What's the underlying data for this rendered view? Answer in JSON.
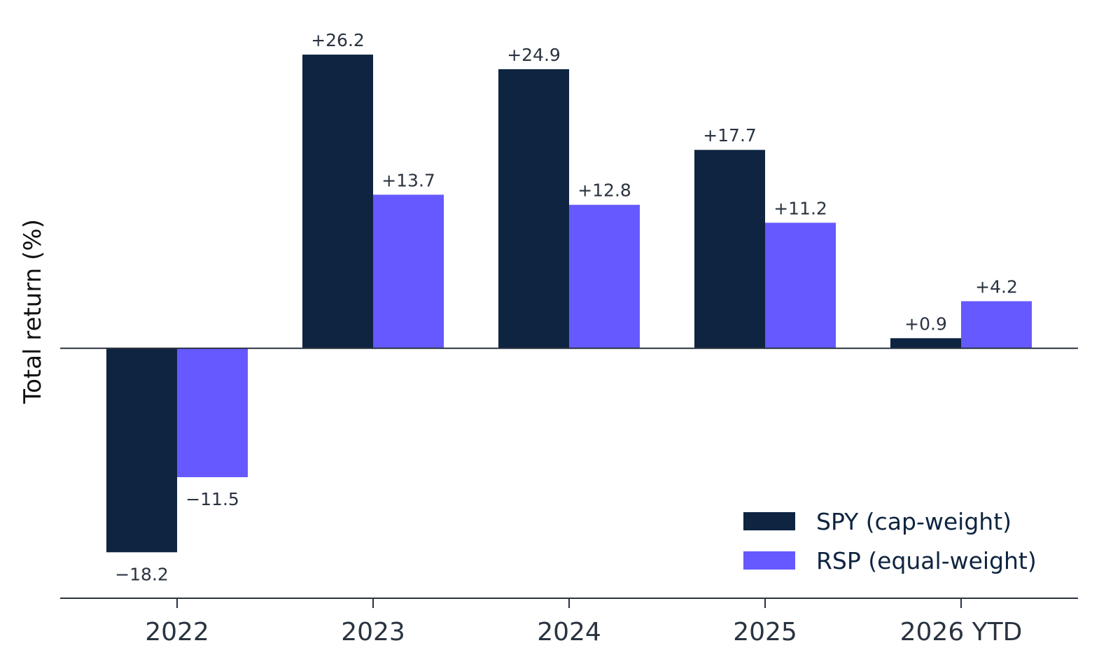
{
  "chart_data": {
    "type": "bar",
    "title": "",
    "xlabel": "",
    "ylabel": "Total return (%)",
    "categories": [
      "2022",
      "2023",
      "2024",
      "2025",
      "2026 YTD"
    ],
    "series": [
      {
        "name": "SPY (cap-weight)",
        "color": "#0e2440",
        "values": [
          -18.2,
          26.2,
          24.9,
          17.7,
          0.9
        ],
        "labels": [
          "−18.2",
          "+26.2",
          "+24.9",
          "+17.7",
          "+0.9"
        ]
      },
      {
        "name": "RSP (equal-weight)",
        "color": "#6559ff",
        "values": [
          -11.5,
          13.7,
          12.8,
          11.2,
          4.2
        ],
        "labels": [
          "−11.5",
          "+13.7",
          "+12.8",
          "+11.2",
          "+4.2"
        ]
      }
    ],
    "ylim": [
      -22.3,
      29.2
    ],
    "grid": false,
    "legend_position": "bottom-right",
    "axis_color": "#2a3340"
  }
}
